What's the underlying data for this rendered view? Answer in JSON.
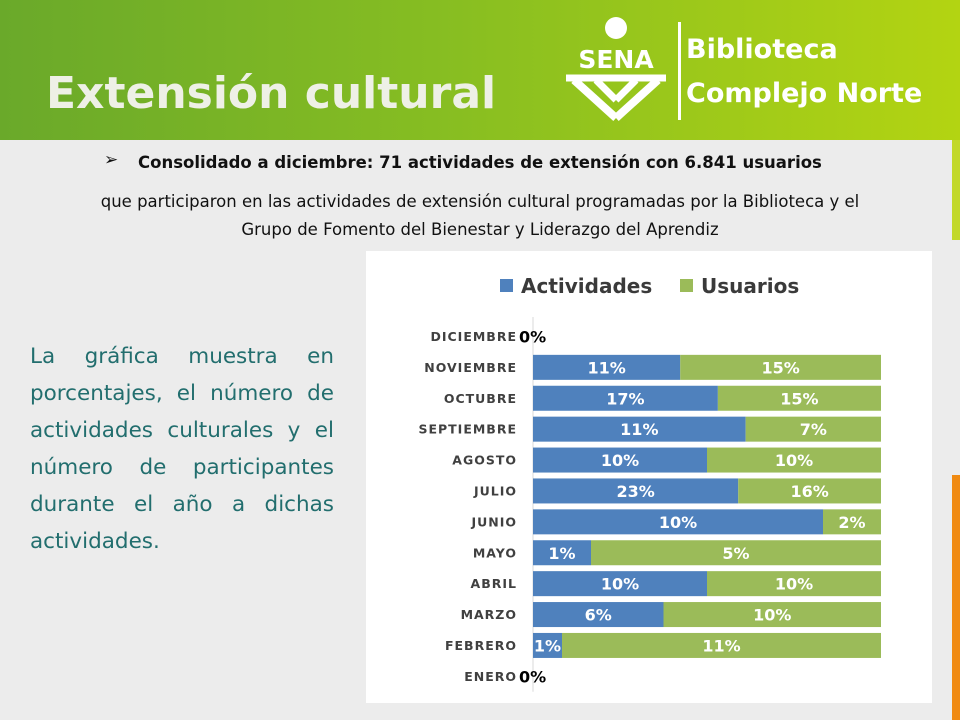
{
  "header": {
    "title": "Extensión cultural",
    "logo_text": "SENA",
    "brand_line1": "Biblioteca",
    "brand_line2": "Complejo Norte"
  },
  "summary": {
    "bullet": "➢",
    "headline": "Consolidado a diciembre: 71 actividades de extensión con 6.841 usuarios",
    "line1": "que participaron en las actividades de extensión cultural programadas por la Biblioteca y  el",
    "line2": "Grupo de Fomento del Bienestar y Liderazgo del Aprendiz"
  },
  "description": "La gráfica muestra en porcentajes, el número de actividades culturales y el número de participantes durante el año a dichas actividades.",
  "colors": {
    "header_green": "#7ab626",
    "actividades": "#4f81bd",
    "usuarios": "#9bbb59",
    "description_text": "#226e6e",
    "accent_orange": "#f08a12"
  },
  "chart_data": {
    "type": "bar",
    "orientation": "horizontal",
    "stacking": "percent",
    "legend_position": "top",
    "categories": [
      "DICIEMBRE",
      "NOVIEMBRE",
      "OCTUBRE",
      "SEPTIEMBRE",
      "AGOSTO",
      "JULIO",
      "JUNIO",
      "MAYO",
      "ABRIL",
      "MARZO",
      "FEBRERO",
      "ENERO"
    ],
    "series": [
      {
        "name": "Actividades",
        "color": "#4f81bd",
        "values": [
          0,
          11,
          17,
          11,
          10,
          23,
          10,
          1,
          10,
          6,
          1,
          0
        ]
      },
      {
        "name": "Usuarios",
        "color": "#9bbb59",
        "values": [
          0,
          15,
          15,
          7,
          10,
          16,
          2,
          5,
          10,
          10,
          11,
          0
        ]
      }
    ],
    "zero_label": "0%",
    "grid": false
  }
}
